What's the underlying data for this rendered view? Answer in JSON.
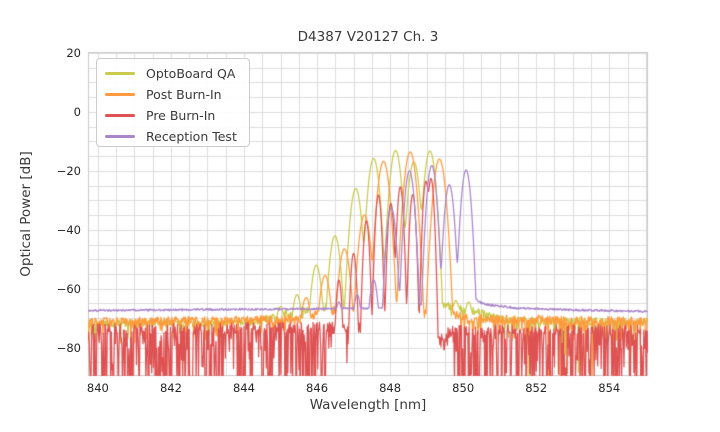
{
  "chart_data": {
    "type": "line",
    "title": "D4387 V20127 Ch. 3",
    "xlabel": "Wavelength [nm]",
    "ylabel": "Optical Power [dB]",
    "xlim": [
      839.73,
      855.06
    ],
    "ylim": [
      -89.6,
      20.3
    ],
    "xticks": [
      {
        "v": 840,
        "label": "840"
      },
      {
        "v": 842,
        "label": "842"
      },
      {
        "v": 844,
        "label": "844"
      },
      {
        "v": 846,
        "label": "846"
      },
      {
        "v": 848,
        "label": "848"
      },
      {
        "v": 850,
        "label": "850"
      },
      {
        "v": 852,
        "label": "852"
      },
      {
        "v": 854,
        "label": "854"
      }
    ],
    "yticks": [
      {
        "v": 20,
        "label": "20"
      },
      {
        "v": 0,
        "label": "0"
      },
      {
        "v": -20,
        "label": "−20"
      },
      {
        "v": -40,
        "label": "−40"
      },
      {
        "v": -60,
        "label": "−60"
      },
      {
        "v": -80,
        "label": "−80"
      }
    ],
    "grid": {
      "x_step": 0.5,
      "y_step": 5,
      "color": "#dcdcdc",
      "spine_color": "#c9c9c9"
    },
    "legend": {
      "position": "upper-left"
    },
    "series": [
      {
        "name": "OptoBoard QA",
        "color": "#c9ca4e",
        "sigma": 0.1,
        "step": 0.015,
        "modes": [
          [
            845.0,
            -66
          ],
          [
            845.45,
            -62
          ],
          [
            845.98,
            -52
          ],
          [
            846.49,
            -42
          ],
          [
            847.06,
            -26
          ],
          [
            847.55,
            -15.8
          ],
          [
            848.15,
            -13.1
          ],
          [
            848.65,
            -17
          ],
          [
            849.09,
            -13.3
          ],
          [
            849.8,
            -64
          ],
          [
            850.15,
            -64.5
          ]
        ],
        "floor": [
          [
            839.73,
            -71.8
          ],
          [
            844.3,
            -71.3
          ],
          [
            845.2,
            -68.3
          ],
          [
            846.3,
            -66.3
          ],
          [
            849.5,
            -65.5
          ],
          [
            850.4,
            -68
          ],
          [
            851.3,
            -70.8
          ],
          [
            855.06,
            -71.3
          ]
        ],
        "noise_amp": 1.3,
        "spike_p": 0.12,
        "spike_depth": 6,
        "dropout": {
          "min_wl": 851.6,
          "p": 0.05,
          "depth": [
            -76,
            -20
          ]
        }
      },
      {
        "name": "Post Burn-In",
        "color": "#ff9a3e",
        "sigma": 0.105,
        "step": 0.015,
        "modes": [
          [
            845.7,
            -63
          ],
          [
            846.22,
            -55.5
          ],
          [
            846.75,
            -46.5
          ],
          [
            847.3,
            -35
          ],
          [
            847.82,
            -16.8
          ],
          [
            848.55,
            -13.6
          ],
          [
            849.35,
            -16
          ]
        ],
        "floor": [
          [
            839.73,
            -71.3
          ],
          [
            845.5,
            -70.5
          ],
          [
            846.4,
            -67.3
          ],
          [
            849.7,
            -68.5
          ],
          [
            850.2,
            -70
          ],
          [
            855.06,
            -71.2
          ]
        ],
        "noise_amp": 1.5,
        "spike_p": 0.15,
        "spike_depth": 7,
        "dropout": {
          "min_wl": 851.3,
          "p": 0.06,
          "depth": [
            -76,
            -22
          ]
        }
      },
      {
        "name": "Pre Burn-In",
        "color": "#de5253",
        "sigma": 0.055,
        "step": 0.016,
        "modes": [
          [
            846.6,
            -57
          ],
          [
            847.0,
            -48
          ],
          [
            847.35,
            -37
          ],
          [
            847.68,
            -28.2
          ],
          [
            848.02,
            -31
          ],
          [
            848.28,
            -25.4
          ],
          [
            848.62,
            -28
          ],
          [
            848.98,
            -23.5
          ],
          [
            849.12,
            -22.6
          ]
        ],
        "floor": [
          [
            839.73,
            -73.8
          ],
          [
            846.2,
            -73
          ],
          [
            849.05,
            -73.5
          ],
          [
            849.25,
            -77
          ],
          [
            849.75,
            -74
          ],
          [
            855.06,
            -74
          ]
        ],
        "noise_amp": 1.8,
        "spike_p": 0.25,
        "spike_depth": 6,
        "dropout": {
          "outside": [
            846.3,
            849.73
          ],
          "p_in": 0.02,
          "p_out": 0.4,
          "depth": [
            -78,
            -25
          ]
        }
      },
      {
        "name": "Reception Test",
        "color": "#a985ca",
        "sigma": 0.085,
        "step": 0.015,
        "modes": [
          [
            846.6,
            -64.5
          ],
          [
            847.1,
            -62
          ],
          [
            847.55,
            -57
          ],
          [
            848.03,
            -32.5
          ],
          [
            848.53,
            -20
          ],
          [
            849.14,
            -18.2
          ],
          [
            849.62,
            -24.7
          ],
          [
            850.08,
            -19.7
          ]
        ],
        "floor": [
          [
            839.73,
            -67.4
          ],
          [
            846.0,
            -66.8
          ],
          [
            848.0,
            -66.5
          ],
          [
            850.3,
            -63.3
          ],
          [
            850.55,
            -65.2
          ],
          [
            851.5,
            -66.6
          ],
          [
            853.0,
            -67.2
          ],
          [
            855.06,
            -67.7
          ]
        ],
        "noise_amp": 0.35,
        "spike_p": 0,
        "spike_depth": 0,
        "dropout": null
      }
    ]
  }
}
